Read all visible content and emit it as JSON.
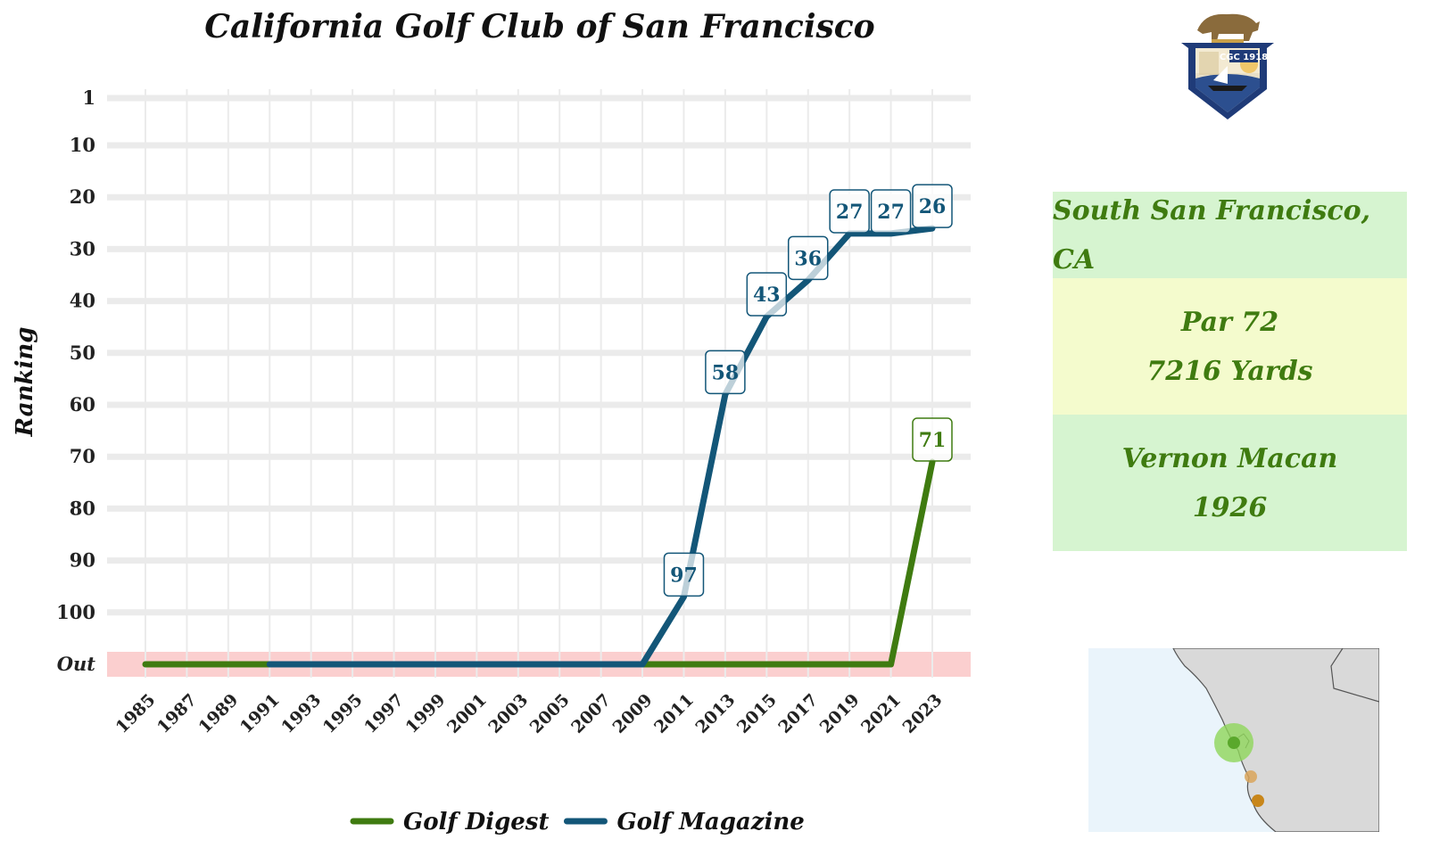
{
  "chart_data": {
    "type": "line",
    "title": "California Golf Club of San Francisco",
    "xlabel": "",
    "ylabel": "Ranking",
    "x_ticks": [
      "1985",
      "1987",
      "1989",
      "1991",
      "1993",
      "1995",
      "1997",
      "1999",
      "2001",
      "2003",
      "2005",
      "2007",
      "2009",
      "2011",
      "2013",
      "2015",
      "2017",
      "2019",
      "2021",
      "2023"
    ],
    "y_ticks": [
      "1",
      "10",
      "20",
      "30",
      "40",
      "50",
      "60",
      "70",
      "80",
      "90",
      "100",
      "Out"
    ],
    "y_tick_values": [
      1,
      10,
      20,
      30,
      40,
      50,
      60,
      70,
      80,
      90,
      100,
      110
    ],
    "xlim": [
      1985,
      2023
    ],
    "ylim": [
      1,
      110
    ],
    "y_reversed": true,
    "out_value": 110,
    "grid": true,
    "out_band_color": "#fbcfcf",
    "legend_position": "bottom",
    "series": [
      {
        "name": "Golf Digest",
        "color": "#3f7b10",
        "points": [
          [
            1985,
            110
          ],
          [
            1987,
            110
          ],
          [
            1989,
            110
          ],
          [
            1991,
            110
          ],
          [
            1993,
            110
          ],
          [
            1995,
            110
          ],
          [
            1997,
            110
          ],
          [
            1999,
            110
          ],
          [
            2001,
            110
          ],
          [
            2003,
            110
          ],
          [
            2005,
            110
          ],
          [
            2007,
            110
          ],
          [
            2009,
            110
          ],
          [
            2011,
            110
          ],
          [
            2013,
            110
          ],
          [
            2015,
            110
          ],
          [
            2017,
            110
          ],
          [
            2019,
            110
          ],
          [
            2021,
            110
          ],
          [
            2023,
            71
          ]
        ],
        "labels": [
          {
            "x": 2023,
            "y": 71,
            "text": "71"
          }
        ]
      },
      {
        "name": "Golf Magazine",
        "color": "#135678",
        "points": [
          [
            1991,
            110
          ],
          [
            1993,
            110
          ],
          [
            1995,
            110
          ],
          [
            1997,
            110
          ],
          [
            1999,
            110
          ],
          [
            2001,
            110
          ],
          [
            2003,
            110
          ],
          [
            2005,
            110
          ],
          [
            2007,
            110
          ],
          [
            2009,
            110
          ],
          [
            2011,
            97
          ],
          [
            2013,
            58
          ],
          [
            2015,
            43
          ],
          [
            2017,
            36
          ],
          [
            2019,
            27
          ],
          [
            2021,
            27
          ],
          [
            2023,
            26
          ]
        ],
        "labels": [
          {
            "x": 2011,
            "y": 97,
            "text": "97"
          },
          {
            "x": 2013,
            "y": 58,
            "text": "58"
          },
          {
            "x": 2015,
            "y": 43,
            "text": "43"
          },
          {
            "x": 2017,
            "y": 36,
            "text": "36"
          },
          {
            "x": 2019,
            "y": 27,
            "text": "27"
          },
          {
            "x": 2021,
            "y": 27,
            "text": "27"
          },
          {
            "x": 2023,
            "y": 26,
            "text": "26"
          }
        ]
      }
    ]
  },
  "info": {
    "location": "South San Francisco, CA",
    "par": "Par 72",
    "yards": "7216 Yards",
    "architect": "Vernon Macan",
    "year": "1926",
    "location_bg": "#d6f4d0",
    "course_bg": "#f4fbcd",
    "architect_bg": "#d6f4d0",
    "text_color": "#3f7b10"
  },
  "crest": {
    "icon": "club-crest-icon",
    "text": "CGC 1918"
  },
  "map": {
    "icon": "location-map-icon",
    "ocean_color": "#eaf4fb",
    "land_color": "#d9d9d9",
    "markers": [
      {
        "name": "club",
        "color": "#8fd65a"
      },
      {
        "name": "nearby-1",
        "color": "#d9a55b"
      },
      {
        "name": "nearby-2",
        "color": "#c8861a"
      }
    ]
  }
}
